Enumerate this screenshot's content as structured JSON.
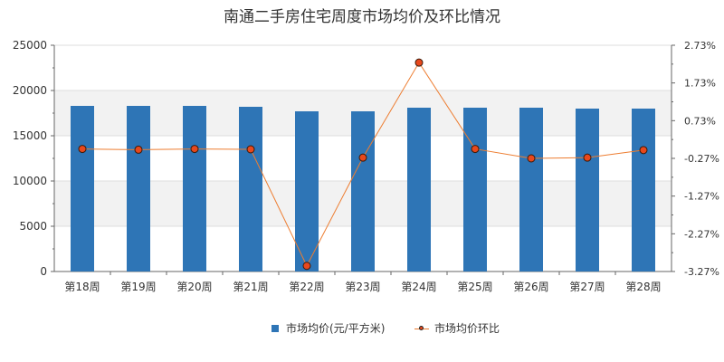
{
  "chart_data": {
    "type": "bar",
    "title": "南通二手房住宅周度市场均价及环比情况",
    "categories": [
      "第18周",
      "第19周",
      "第20周",
      "第21周",
      "第22周",
      "第23周",
      "第24周",
      "第25周",
      "第26周",
      "第27周",
      "第28周"
    ],
    "series": [
      {
        "name": "市场均价(元/平方米)",
        "type": "bar",
        "axis": "left",
        "color": "#2e75b6",
        "values": [
          18300,
          18300,
          18300,
          18200,
          17700,
          17700,
          18100,
          18100,
          18100,
          18000,
          18000
        ]
      },
      {
        "name": "市场均价环比",
        "type": "line",
        "axis": "right",
        "color": "#ed7d31",
        "marker_color": "#e8481c",
        "values": [
          -0.02,
          -0.04,
          -0.02,
          -0.03,
          -3.12,
          -0.25,
          2.27,
          -0.02,
          -0.27,
          -0.25,
          -0.05
        ]
      }
    ],
    "y_left": {
      "min": 0,
      "max": 25000,
      "ticks": [
        0,
        5000,
        10000,
        15000,
        20000,
        25000
      ],
      "tick_labels": [
        "0",
        "5000",
        "10000",
        "15000",
        "20000",
        "25000"
      ]
    },
    "y_right": {
      "min": -3.27,
      "max": 2.73,
      "ticks": [
        -3.27,
        -2.27,
        -1.27,
        -0.27,
        0.73,
        1.73,
        2.73
      ],
      "tick_labels": [
        "-3.27%",
        "-2.27%",
        "-1.27%",
        "-0.27%",
        "0.73%",
        "1.73%",
        "2.73%"
      ]
    },
    "grid": true,
    "legend_position": "bottom"
  },
  "legend": {
    "bar_label": "市场均价(元/平方米)",
    "line_label": "市场均价环比"
  }
}
